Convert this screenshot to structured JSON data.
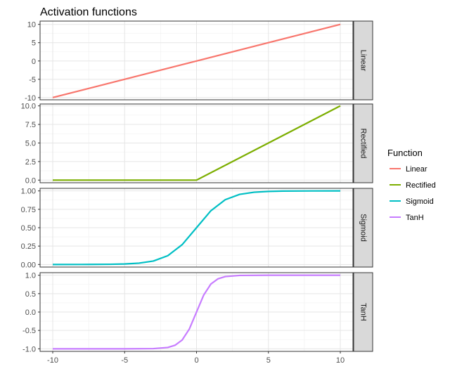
{
  "chart_data": {
    "type": "line",
    "title": "Activation functions",
    "xlim": [
      -10,
      10
    ],
    "x_ticks": [
      -10,
      -5,
      0,
      5,
      10
    ],
    "facets_layout": "rows",
    "legend": {
      "title": "Function",
      "placement": "right",
      "entries": [
        "Linear",
        "Rectified",
        "Sigmoid",
        "TanH"
      ]
    },
    "facets": [
      {
        "name": "Linear",
        "color": "#F8766D",
        "ylim": [
          -10.6,
          10.9
        ],
        "y_ticks": [
          10,
          5,
          0,
          -5,
          -10
        ],
        "y_tick_labels": [
          "10",
          "5",
          "0",
          "-5",
          "-10"
        ],
        "x": [
          -10,
          -5,
          0,
          5,
          10
        ],
        "y": [
          -10,
          -5,
          0,
          5,
          10
        ]
      },
      {
        "name": "Rectified",
        "color": "#7CAE00",
        "ylim": [
          -0.35,
          10.25
        ],
        "y_ticks": [
          10,
          7.5,
          5,
          2.5,
          0
        ],
        "y_tick_labels": [
          "10.0",
          "7.5",
          "5.0",
          "2.5",
          "0.0"
        ],
        "x": [
          -10,
          -5,
          0,
          5,
          10
        ],
        "y": [
          0,
          0,
          0,
          5,
          10
        ]
      },
      {
        "name": "Sigmoid",
        "color": "#00BFC4",
        "ylim": [
          -0.035,
          1.035
        ],
        "y_ticks": [
          1,
          0.75,
          0.5,
          0.25,
          0
        ],
        "y_tick_labels": [
          "1.00",
          "0.75",
          "0.50",
          "0.25",
          "0.00"
        ],
        "x": [
          -10,
          -8,
          -6,
          -5,
          -4,
          -3,
          -2,
          -1,
          0,
          1,
          2,
          3,
          4,
          5,
          6,
          8,
          10
        ],
        "y": [
          0.0,
          0.0003,
          0.0025,
          0.0067,
          0.018,
          0.047,
          0.119,
          0.269,
          0.5,
          0.731,
          0.881,
          0.953,
          0.982,
          0.993,
          0.998,
          0.9997,
          1.0
        ]
      },
      {
        "name": "TanH",
        "color": "#C77CFF",
        "ylim": [
          -1.07,
          1.07
        ],
        "y_ticks": [
          1,
          0.5,
          0,
          -0.5,
          -1
        ],
        "y_tick_labels": [
          "1.0",
          "0.5",
          "0.0",
          "-0.5",
          "-1.0"
        ],
        "x": [
          -10,
          -5,
          -3,
          -2,
          -1.5,
          -1,
          -0.5,
          0,
          0.5,
          1,
          1.5,
          2,
          3,
          5,
          10
        ],
        "y": [
          -1.0,
          -1.0,
          -0.995,
          -0.964,
          -0.905,
          -0.762,
          -0.462,
          0.0,
          0.462,
          0.762,
          0.905,
          0.964,
          0.995,
          1.0,
          1.0
        ]
      }
    ]
  }
}
